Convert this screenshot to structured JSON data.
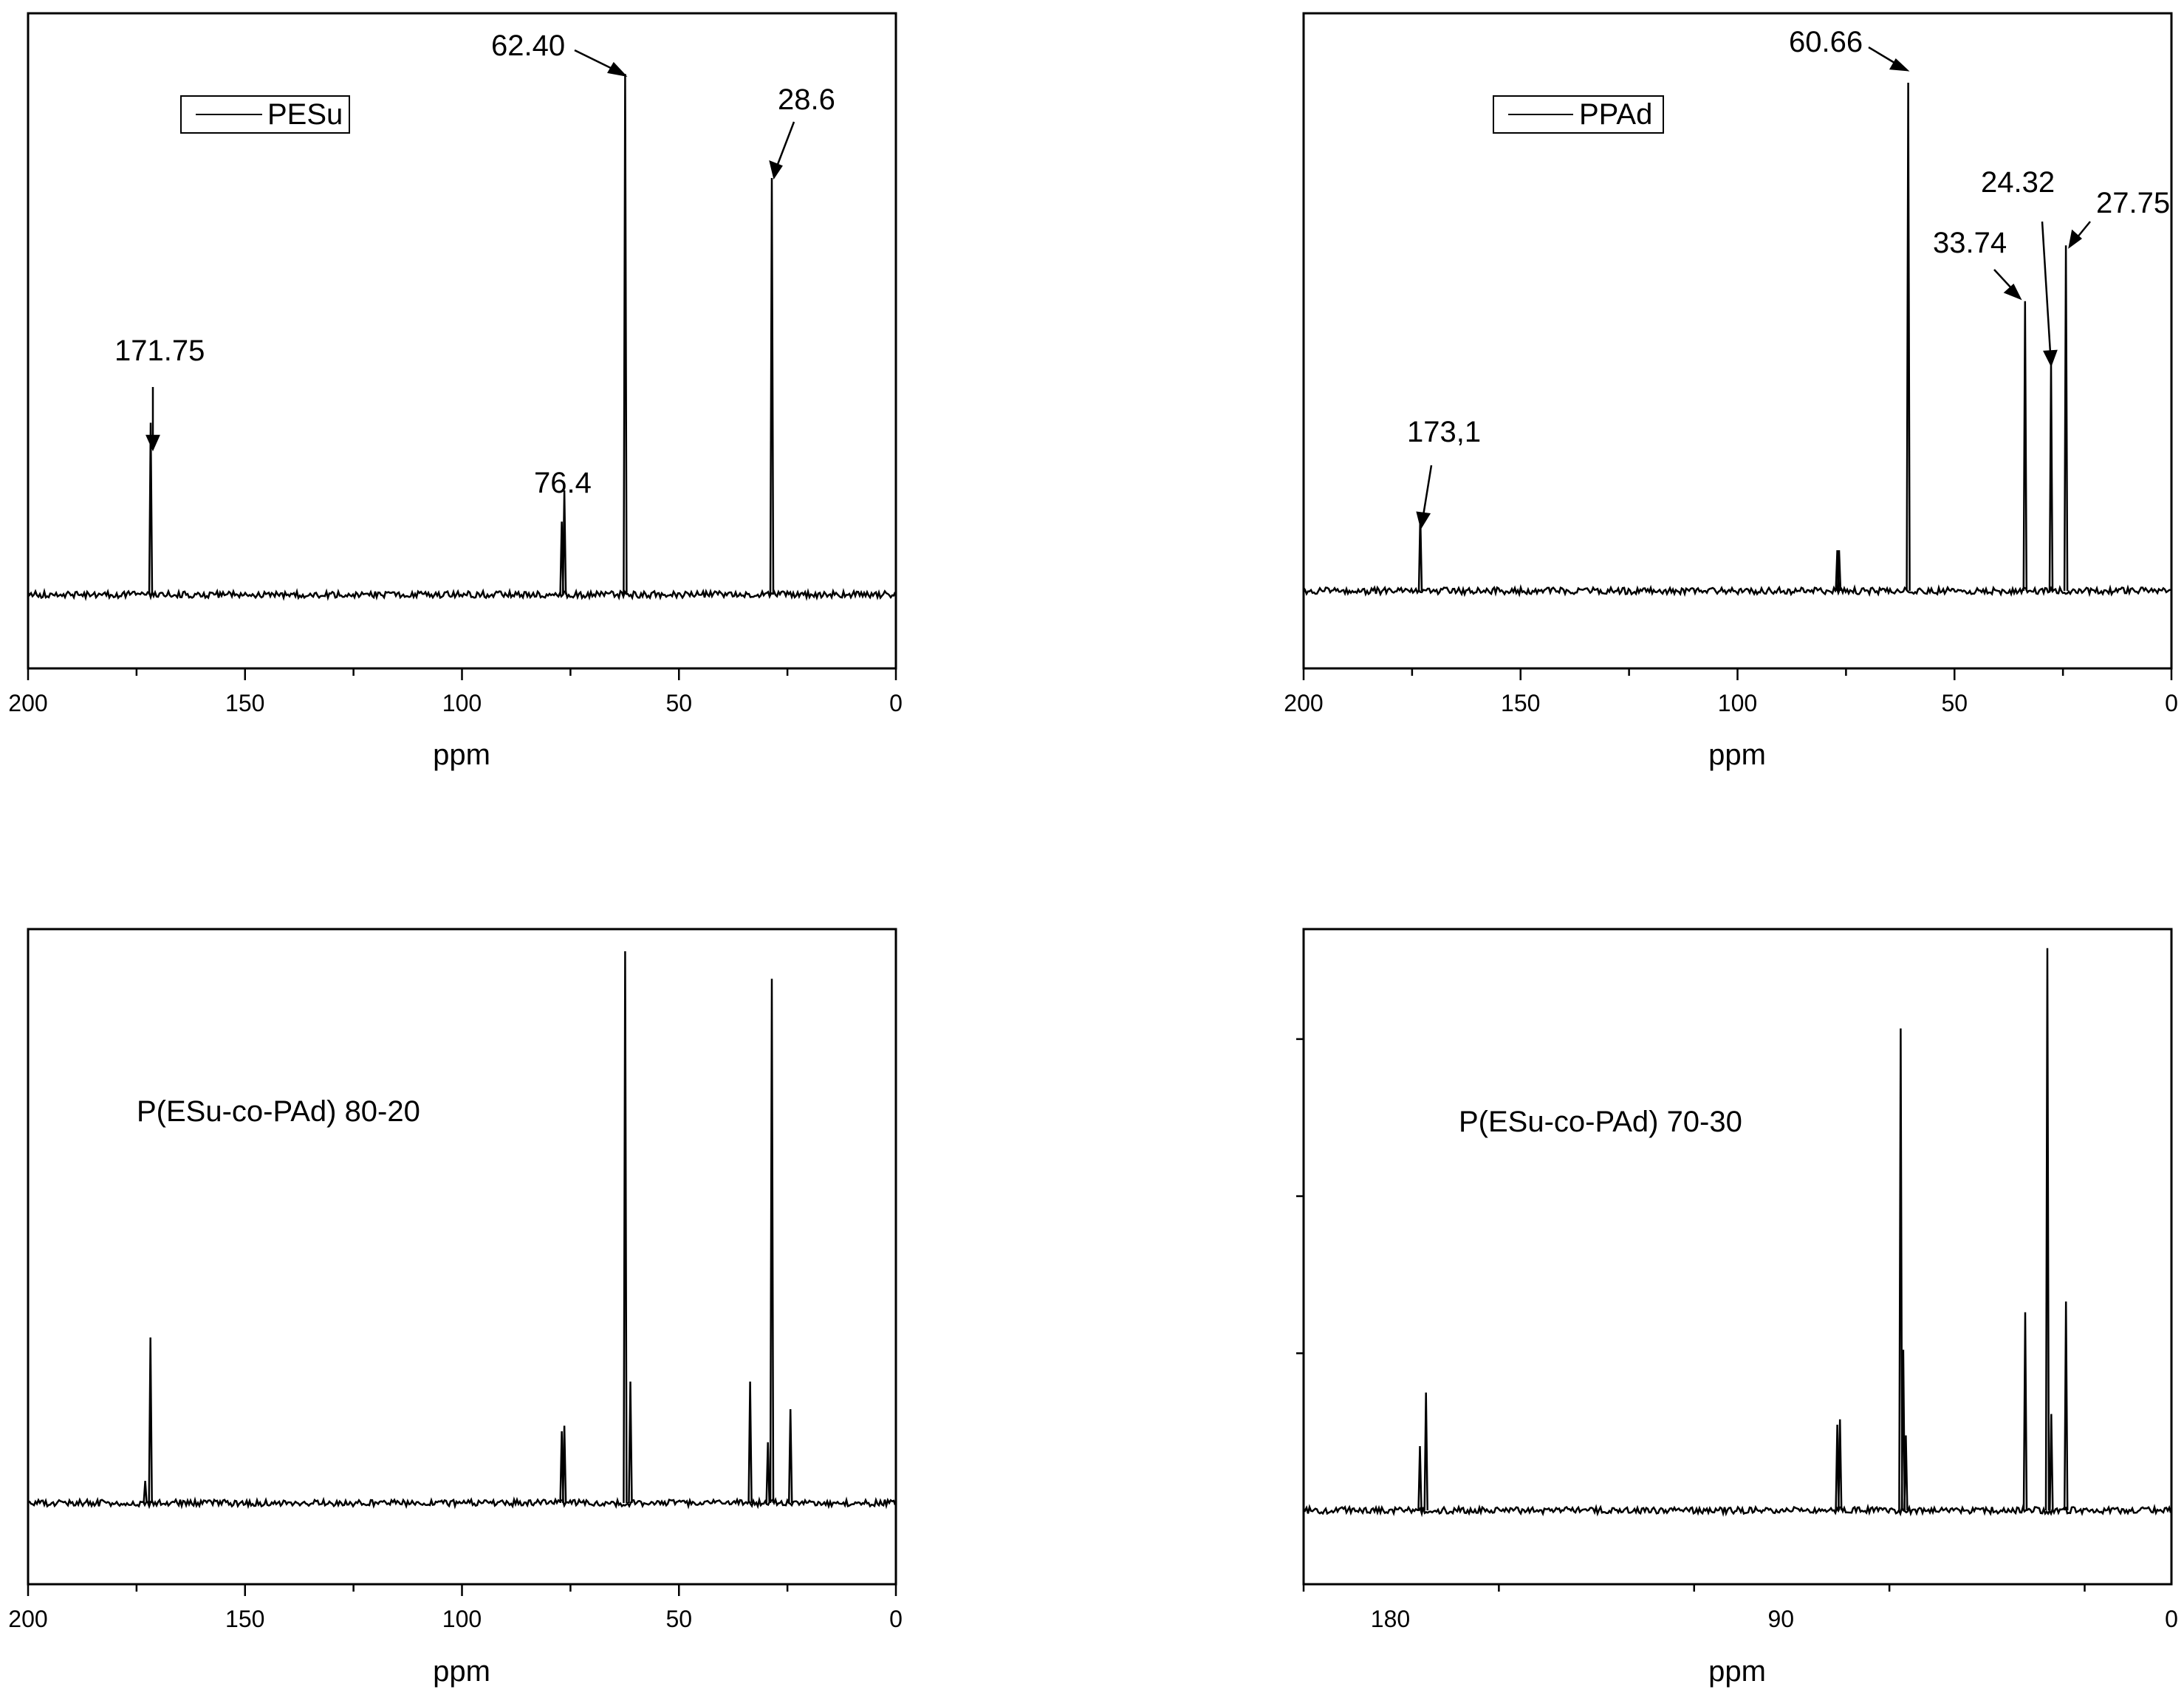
{
  "chart_data": [
    {
      "type": "line",
      "xlabel": "ppm",
      "xlim": [
        200,
        0
      ],
      "x_reversed": true,
      "ylim": [
        0,
        1.2
      ],
      "xticks": [
        200,
        150,
        100,
        50,
        0
      ],
      "tick_labels": [
        "200",
        "150",
        "100",
        "50",
        "0"
      ],
      "legend": "PESu",
      "legend_position": "top-left",
      "annotations": [
        {
          "text": "62.40"
        },
        {
          "text": "28.6"
        },
        {
          "text": "171.75"
        },
        {
          "text": "76.4"
        }
      ],
      "series": [
        {
          "peaks": [
            {
              "ppm": 171.75,
              "height": 0.33
            },
            {
              "ppm": 77.0,
              "height": 0.14
            },
            {
              "ppm": 76.4,
              "height": 0.2
            },
            {
              "ppm": 62.4,
              "height": 1.0
            },
            {
              "ppm": 28.6,
              "height": 0.8
            }
          ]
        }
      ]
    },
    {
      "type": "line",
      "xlabel": "ppm",
      "xlim": [
        200,
        0
      ],
      "x_reversed": true,
      "ylim": [
        0,
        1.2
      ],
      "xticks": [
        200,
        150,
        100,
        50,
        0
      ],
      "tick_labels": [
        "200",
        "150",
        "100",
        "50",
        "0"
      ],
      "legend": "PPAd",
      "legend_position": "top-left",
      "annotations": [
        {
          "text": "60.66"
        },
        {
          "text": "24.32"
        },
        {
          "text": "27.75"
        },
        {
          "text": "33.74"
        },
        {
          "text": "173,1"
        }
      ],
      "series": [
        {
          "peaks": [
            {
              "ppm": 173.1,
              "height": 0.15
            },
            {
              "ppm": 77.0,
              "height": 0.08
            },
            {
              "ppm": 76.6,
              "height": 0.08
            },
            {
              "ppm": 60.66,
              "height": 1.0
            },
            {
              "ppm": 33.74,
              "height": 0.57
            },
            {
              "ppm": 27.75,
              "height": 0.45
            },
            {
              "ppm": 24.32,
              "height": 0.68
            }
          ]
        }
      ]
    },
    {
      "type": "line",
      "xlabel": "ppm",
      "xlim": [
        200,
        0
      ],
      "x_reversed": true,
      "ylim": [
        0,
        1.2
      ],
      "xticks": [
        200,
        150,
        100,
        50,
        0
      ],
      "tick_labels": [
        "200",
        "150",
        "100",
        "50",
        "0"
      ],
      "annotations": [
        {
          "text": "P(ESu-co-PAd) 80-20"
        }
      ],
      "series": [
        {
          "peaks": [
            {
              "ppm": 173.0,
              "height": 0.04
            },
            {
              "ppm": 171.8,
              "height": 0.3
            },
            {
              "ppm": 77.0,
              "height": 0.13
            },
            {
              "ppm": 76.4,
              "height": 0.14
            },
            {
              "ppm": 62.4,
              "height": 1.0
            },
            {
              "ppm": 61.2,
              "height": 0.22
            },
            {
              "ppm": 33.6,
              "height": 0.22
            },
            {
              "ppm": 29.5,
              "height": 0.11
            },
            {
              "ppm": 28.6,
              "height": 0.95
            },
            {
              "ppm": 24.3,
              "height": 0.17
            }
          ]
        }
      ]
    },
    {
      "type": "line",
      "xlabel": "ppm",
      "xlim": [
        200,
        0
      ],
      "x_reversed": true,
      "ylim": [
        0,
        1.2
      ],
      "xticks": [
        180,
        90,
        0
      ],
      "tick_labels": [
        "180",
        "90",
        "0"
      ],
      "y_minor_ticks": 3,
      "annotations": [
        {
          "text": "P(ESu-co-PAd) 70-30"
        }
      ],
      "series": [
        {
          "peaks": [
            {
              "ppm": 173.2,
              "height": 0.12
            },
            {
              "ppm": 171.8,
              "height": 0.22
            },
            {
              "ppm": 77.0,
              "height": 0.16
            },
            {
              "ppm": 76.4,
              "height": 0.17
            },
            {
              "ppm": 62.4,
              "height": 0.9
            },
            {
              "ppm": 61.8,
              "height": 0.3
            },
            {
              "ppm": 61.2,
              "height": 0.14
            },
            {
              "ppm": 33.7,
              "height": 0.37
            },
            {
              "ppm": 28.6,
              "height": 1.05
            },
            {
              "ppm": 27.7,
              "height": 0.18
            },
            {
              "ppm": 24.3,
              "height": 0.39
            }
          ]
        }
      ]
    }
  ]
}
